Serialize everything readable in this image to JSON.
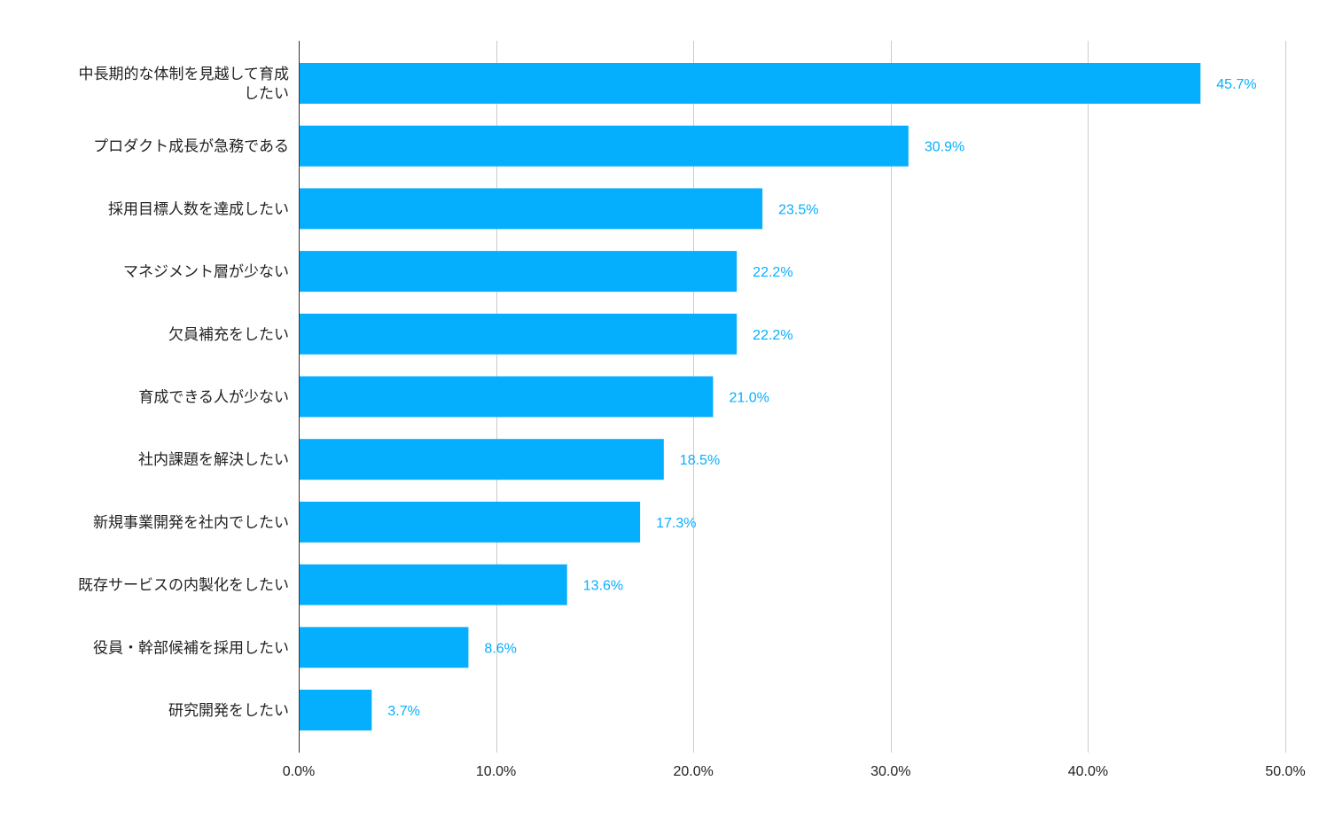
{
  "chart_data": {
    "type": "bar",
    "orientation": "horizontal",
    "title": "",
    "xlabel": "",
    "ylabel": "",
    "categories": [
      [
        "中長期的な体制を見越して育成",
        "したい"
      ],
      [
        "プロダクト成長が急務である"
      ],
      [
        "採用目標人数を達成したい"
      ],
      [
        "マネジメント層が少ない"
      ],
      [
        "欠員補充をしたい"
      ],
      [
        "育成できる人が少ない"
      ],
      [
        "社内課題を解決したい"
      ],
      [
        "新規事業開発を社内でしたい"
      ],
      [
        "既存サービスの内製化をしたい"
      ],
      [
        "役員・幹部候補を採用したい"
      ],
      [
        "研究開発をしたい"
      ]
    ],
    "values": [
      45.7,
      30.9,
      23.5,
      22.2,
      22.2,
      21.0,
      18.5,
      17.3,
      13.6,
      8.6,
      3.7
    ],
    "value_labels": [
      "45.7%",
      "30.9%",
      "23.5%",
      "22.2%",
      "22.2%",
      "21.0%",
      "18.5%",
      "17.3%",
      "13.6%",
      "8.6%",
      "3.7%"
    ],
    "xlim": [
      0,
      50
    ],
    "x_ticks": [
      0,
      10,
      20,
      30,
      40,
      50
    ],
    "x_tick_labels": [
      "0.0%",
      "10.0%",
      "20.0%",
      "30.0%",
      "40.0%",
      "50.0%"
    ],
    "grid": "vertical",
    "legend": "none",
    "colors": {
      "bar": "#06AEFE",
      "value_label": "#06AEFE",
      "gridline": "#CCCCCC",
      "axis": "#333333",
      "text": "#222222"
    }
  }
}
